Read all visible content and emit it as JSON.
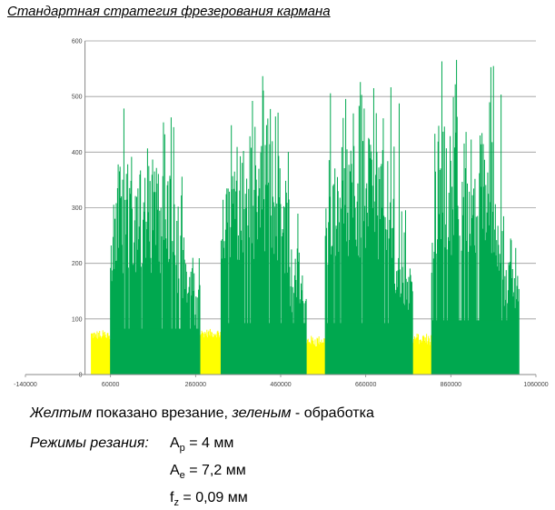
{
  "title": "Стандартная стратегия фрезерования кармана",
  "chart_data": {
    "type": "bar",
    "title": "Стандартная стратегия фрезерования кармана",
    "xlabel": "",
    "ylabel": "",
    "xlim": [
      -140000,
      1060000
    ],
    "ylim": [
      0,
      600
    ],
    "x_ticks": [
      "-140000",
      "60000",
      "260000",
      "460000",
      "660000",
      "860000",
      "1060000"
    ],
    "y_ticks": [
      "0",
      "100",
      "200",
      "300",
      "400",
      "500",
      "600"
    ],
    "grid": true,
    "series": [
      {
        "name": "врезание",
        "color": "#ffff00",
        "segments": [
          {
            "x_start": 15000,
            "x_end": 60000,
            "peak": 80,
            "mean": 55
          },
          {
            "x_start": 270000,
            "x_end": 320000,
            "peak": 82,
            "mean": 60
          },
          {
            "x_start": 520000,
            "x_end": 565000,
            "peak": 70,
            "mean": 45
          },
          {
            "x_start": 770000,
            "x_end": 815000,
            "peak": 75,
            "mean": 45
          }
        ]
      },
      {
        "name": "обработка",
        "color": "#00a84f",
        "segments": [
          {
            "x_start": 60000,
            "x_end": 270000,
            "peak": 480,
            "mean": 330
          },
          {
            "x_start": 320000,
            "x_end": 520000,
            "peak": 540,
            "mean": 370
          },
          {
            "x_start": 565000,
            "x_end": 770000,
            "peak": 540,
            "mean": 370
          },
          {
            "x_start": 815000,
            "x_end": 1020000,
            "peak": 570,
            "mean": 390
          }
        ]
      }
    ]
  },
  "caption": {
    "yellow_word": "Желтым",
    "middle": " показано врезание, ",
    "green_word": "зеленым",
    "end": " - обработка"
  },
  "modes": {
    "label": "Режимы резания:",
    "ap_sym": "A",
    "ap_sub": "p",
    "ap_val": " = 4 мм",
    "ae_sym": "A",
    "ae_sub": "e",
    "ae_val": " = 7,2 мм",
    "fz_sym": "f",
    "fz_sub": "z",
    "fz_val": " = 0,09 мм"
  }
}
